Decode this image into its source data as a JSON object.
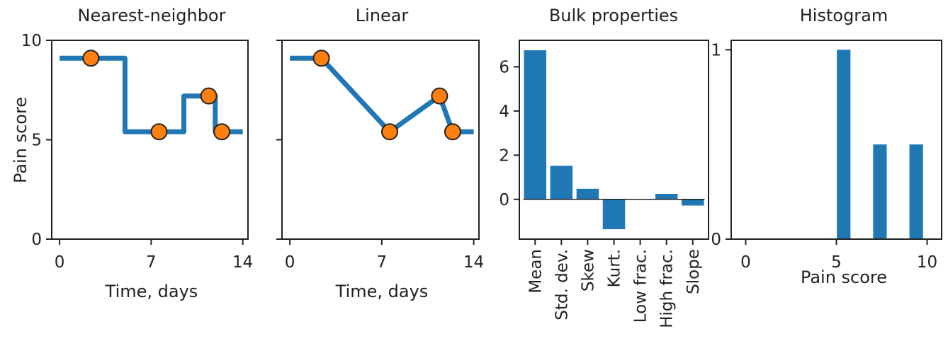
{
  "colors": {
    "line": "#1f77b4",
    "point": "#ff7f0e",
    "bar": "#1f77b4",
    "axis": "#222222"
  },
  "chart_data": [
    {
      "type": "line",
      "interpolation": "nearest",
      "title": "Nearest-neighbor",
      "xlabel": "Time, days",
      "ylabel": "Pain score",
      "xlim": [
        -0.6,
        14.4
      ],
      "ylim": [
        0,
        10
      ],
      "xticks": [
        0,
        7,
        14
      ],
      "yticks": [
        0,
        5,
        10
      ],
      "line": {
        "x": [
          0,
          5,
          5,
          9.5,
          9.5,
          11.9,
          11.9,
          14
        ],
        "y": [
          9.1,
          9.1,
          5.4,
          5.4,
          7.2,
          7.2,
          5.4,
          5.4
        ]
      },
      "points": {
        "x": [
          2.4,
          7.6,
          11.4,
          12.4
        ],
        "y": [
          9.1,
          5.4,
          7.2,
          5.4
        ]
      }
    },
    {
      "type": "line",
      "interpolation": "linear",
      "title": "Linear",
      "xlabel": "Time, days",
      "ylabel": "",
      "xlim": [
        -0.6,
        14.4
      ],
      "ylim": [
        0,
        10
      ],
      "xticks": [
        0,
        7,
        14
      ],
      "yticks": [
        0,
        5,
        10
      ],
      "yticklabels_visible": false,
      "line": {
        "x": [
          0,
          2.4,
          7.6,
          11.4,
          12.4,
          14
        ],
        "y": [
          9.1,
          9.1,
          5.4,
          7.2,
          5.4,
          5.4
        ]
      },
      "points": {
        "x": [
          2.4,
          7.6,
          11.4,
          12.4
        ],
        "y": [
          9.1,
          5.4,
          7.2,
          5.4
        ]
      }
    },
    {
      "type": "bar",
      "title": "Bulk properties",
      "xlabel": "",
      "ylabel": "",
      "categories": [
        "Mean",
        "Std. dev.",
        "Skew",
        "Kurt.",
        "Low frac.",
        "High frac.",
        "Slope"
      ],
      "values": [
        6.75,
        1.52,
        0.48,
        -1.35,
        0.0,
        0.25,
        -0.28
      ],
      "ylim": [
        -1.8,
        7.2
      ],
      "yticks": [
        0,
        2,
        4,
        6
      ],
      "zero_line": true
    },
    {
      "type": "bar",
      "title": "Histogram",
      "xlabel": "Pain score",
      "ylabel": "",
      "x": [
        5.4,
        7.4,
        9.4
      ],
      "values": [
        1.0,
        0.5,
        0.5
      ],
      "bar_width": 0.75,
      "xlim": [
        -0.8,
        10.8
      ],
      "ylim": [
        0,
        1.05
      ],
      "xticks": [
        0,
        5,
        10
      ],
      "yticks": [
        0,
        1
      ]
    }
  ]
}
